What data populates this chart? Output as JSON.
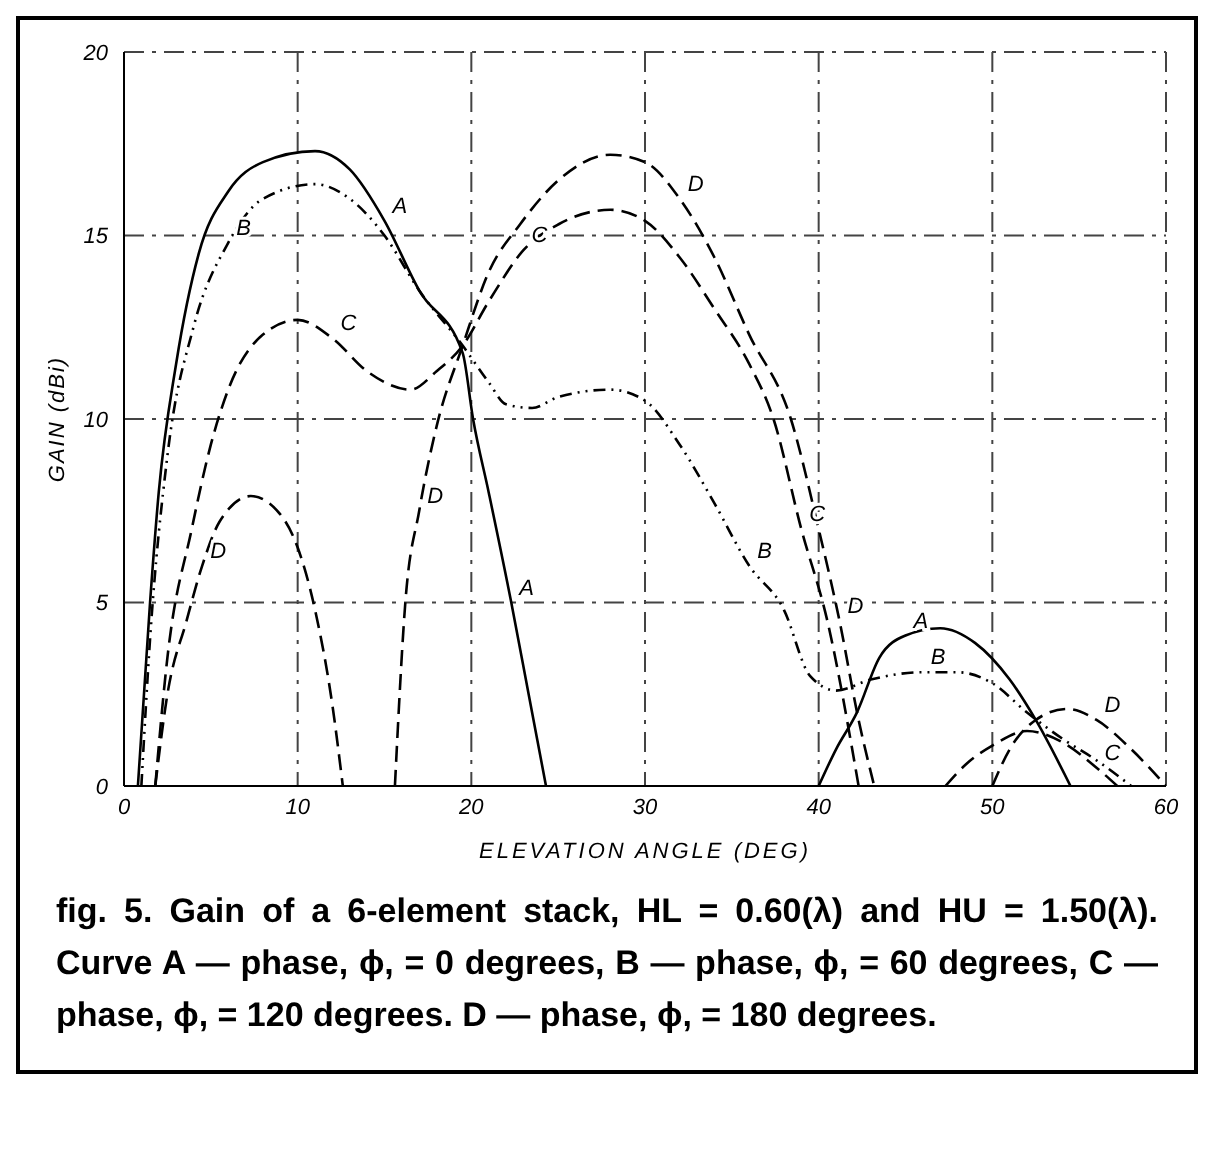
{
  "chart_data": {
    "type": "line",
    "xlabel": "ELEVATION ANGLE (DEG)",
    "ylabel": "GAIN (dBi)",
    "xlim": [
      0,
      60
    ],
    "xticks": [
      0,
      10,
      20,
      30,
      40,
      50,
      60
    ],
    "ylim": [
      0,
      20
    ],
    "yticks": [
      0,
      5,
      10,
      15,
      20
    ],
    "grid": true,
    "legend": false,
    "marker": "none",
    "series": [
      {
        "color": "#000000",
        "line_style": "solid",
        "x": [
          0.8,
          1.5,
          2,
          3,
          4.3,
          6,
          8,
          11,
          13,
          15,
          17,
          19.5,
          20.1,
          21,
          22.3,
          23.3,
          24.3,
          30,
          40,
          41,
          42.2,
          43.5,
          45,
          47,
          49,
          51,
          52.5,
          54.5
        ],
        "values": [
          0,
          5,
          8,
          11.5,
          14.5,
          16.2,
          17,
          17.3,
          16.8,
          15.4,
          13.5,
          11.8,
          10,
          8,
          5,
          2.5,
          0,
          null,
          0,
          1,
          2,
          3.5,
          4.1,
          4.3,
          3.9,
          2.9,
          1.8,
          0
        ]
      },
      {
        "color": "#000000",
        "line_style": "dotted",
        "x": [
          1,
          1.5,
          2.5,
          4,
          6,
          8,
          11,
          13,
          15,
          17,
          19.5,
          21,
          22,
          23.5,
          25,
          28,
          30,
          32,
          34,
          36,
          38,
          39.5,
          41,
          43,
          46,
          48,
          50,
          52,
          54,
          56,
          58
        ],
        "values": [
          0,
          4,
          9,
          12.5,
          14.8,
          16,
          16.4,
          16,
          15,
          13.5,
          12,
          11,
          10.4,
          10.3,
          10.6,
          10.8,
          10.5,
          9.3,
          7.7,
          6,
          4.8,
          3,
          2.6,
          2.9,
          3.1,
          3.1,
          2.8,
          2,
          1.3,
          0.7,
          0
        ]
      },
      {
        "color": "#000000",
        "line_style": "dashed",
        "x": [
          1.8,
          2.5,
          3.9,
          5,
          6,
          8,
          10,
          12,
          14,
          16.5,
          18,
          19.5,
          21,
          23,
          25,
          28,
          30,
          32,
          34,
          36,
          37.4,
          39,
          40.5,
          42.3,
          45,
          47.3,
          48.5,
          50,
          52,
          54,
          56,
          57.2
        ],
        "values": [
          0,
          3.5,
          7,
          9.3,
          10.8,
          12.3,
          12.7,
          12.2,
          11.3,
          10.8,
          11.3,
          12,
          13.2,
          14.6,
          15.3,
          15.7,
          15.4,
          14.4,
          13,
          11.5,
          10,
          7,
          4.5,
          0,
          null,
          0,
          0.6,
          1.1,
          1.5,
          1.2,
          0.5,
          0
        ]
      },
      {
        "color": "#000000",
        "line_style": "dashed",
        "x": [
          1.8,
          2.5,
          3.6,
          4.5,
          5.5,
          7.3,
          9,
          10,
          11,
          12,
          12.6,
          14,
          15.6,
          16.2,
          17,
          18,
          19.5,
          21,
          22.8,
          25,
          28,
          30,
          32,
          34,
          36,
          38.4,
          40,
          41.2,
          42.3,
          43.2,
          47,
          50,
          51,
          52.5,
          54.3,
          56,
          58,
          60
        ],
        "values": [
          0,
          2.5,
          4.5,
          6,
          7.2,
          7.9,
          7.4,
          6.5,
          4.8,
          2.2,
          0,
          null,
          0,
          5,
          7.5,
          9.8,
          12,
          14,
          15.3,
          16.5,
          17.2,
          17,
          16,
          14.4,
          12.3,
          10,
          7,
          4.5,
          1.8,
          0,
          null,
          0,
          1,
          1.8,
          2.1,
          1.8,
          1,
          0
        ]
      }
    ],
    "annotations": [
      {
        "text": "A",
        "x": 15,
        "y": 15.4
      },
      {
        "text": "B",
        "x": 6,
        "y": 14.8
      },
      {
        "text": "C",
        "x": 12,
        "y": 12.2
      },
      {
        "text": "C",
        "x": 23,
        "y": 14.6
      },
      {
        "text": "D",
        "x": 4.5,
        "y": 6
      },
      {
        "text": "D",
        "x": 17,
        "y": 7.5
      },
      {
        "text": "A",
        "x": 22.3,
        "y": 5
      },
      {
        "text": "D",
        "x": 32,
        "y": 16
      },
      {
        "text": "B",
        "x": 36,
        "y": 6
      },
      {
        "text": "C",
        "x": 39,
        "y": 7
      },
      {
        "text": "D",
        "x": 41.2,
        "y": 4.5
      },
      {
        "text": "A",
        "x": 45,
        "y": 4.1
      },
      {
        "text": "B",
        "x": 46,
        "y": 3.1
      },
      {
        "text": "D",
        "x": 56,
        "y": 1.8
      },
      {
        "text": "C",
        "x": 56,
        "y": 0.5
      },
      "fig. 5. Gain of a 6-element stack, HL = 0.60(λ) and HU = 1.50(λ). Curve A — phase, ϕ, = 0 degrees, B — phase, ϕ, = 60 degrees, C — phase, ϕ, = 120 degrees. D — phase, ϕ, = 180 degrees."
    ]
  }
}
